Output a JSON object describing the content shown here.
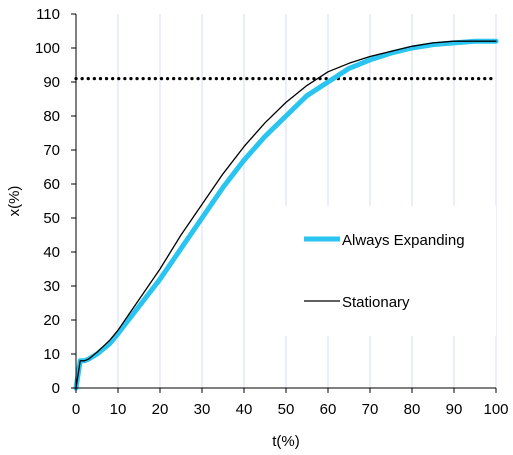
{
  "chart_data": {
    "type": "line",
    "xlabel": "t(%)",
    "ylabel": "x(%)",
    "xlim": [
      0,
      100
    ],
    "ylim": [
      0,
      110
    ],
    "xticks": [
      0,
      10,
      20,
      30,
      40,
      50,
      60,
      70,
      80,
      90,
      100
    ],
    "yticks": [
      0,
      10,
      20,
      30,
      40,
      50,
      60,
      70,
      80,
      90,
      100,
      110
    ],
    "grid": "vertical",
    "legend_position": "right",
    "reference_line": {
      "y": 91,
      "style": "dotted"
    },
    "series": [
      {
        "name": "Always Expanding",
        "color": "#29c5f0",
        "x": [
          0,
          1,
          2,
          3,
          5,
          8,
          10,
          15,
          20,
          25,
          30,
          35,
          40,
          45,
          50,
          55,
          60,
          65,
          70,
          75,
          80,
          85,
          90,
          95,
          100
        ],
        "y": [
          0,
          8,
          8,
          8.5,
          10,
          13,
          16,
          24,
          32,
          41,
          50,
          59,
          67,
          74,
          80,
          86,
          90,
          94,
          96.5,
          98.5,
          100,
          101,
          101.5,
          102,
          102
        ]
      },
      {
        "name": "Stationary",
        "color": "#000000",
        "x": [
          0,
          1,
          2,
          3,
          5,
          8,
          10,
          15,
          20,
          25,
          30,
          35,
          40,
          45,
          50,
          55,
          60,
          65,
          70,
          75,
          80,
          85,
          90,
          95,
          100
        ],
        "y": [
          0,
          8,
          8,
          8.5,
          10.5,
          14,
          17,
          26,
          35,
          45,
          54,
          63,
          71,
          78,
          84,
          89,
          93,
          95.5,
          97.5,
          99,
          100.5,
          101.5,
          102,
          102,
          102
        ]
      }
    ]
  }
}
